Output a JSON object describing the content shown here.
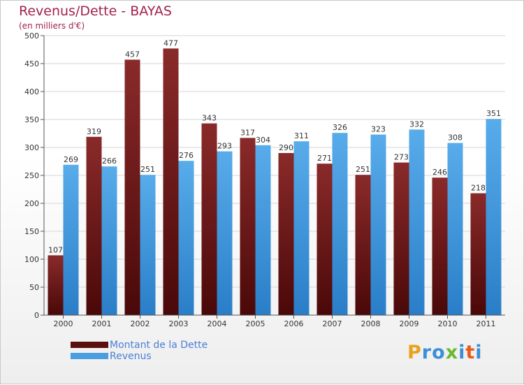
{
  "title": "Revenus/Dette - BAYAS",
  "subtitle": "(en milliers d'€)",
  "chart_data": {
    "type": "bar",
    "categories": [
      "2000",
      "2001",
      "2002",
      "2003",
      "2004",
      "2005",
      "2006",
      "2007",
      "2008",
      "2009",
      "2010",
      "2011"
    ],
    "series": [
      {
        "name": "Montant de la Dette",
        "color": "#7a1c1c",
        "values": [
          107,
          319,
          457,
          477,
          343,
          317,
          290,
          271,
          251,
          273,
          246,
          218
        ]
      },
      {
        "name": "Revenus",
        "color": "#4a9ee0",
        "values": [
          269,
          266,
          251,
          276,
          293,
          304,
          311,
          326,
          323,
          332,
          308,
          351
        ]
      }
    ],
    "ylim": [
      0,
      500
    ],
    "yticks": [
      0,
      50,
      100,
      150,
      200,
      250,
      300,
      350,
      400,
      450,
      500
    ],
    "grid": true,
    "legend_position": "bottom-left"
  },
  "legend": [
    {
      "label": "Montant de la Dette",
      "color": "#5a0f0f"
    },
    {
      "label": "Revenus",
      "color": "#4a9ee0"
    }
  ],
  "logo": {
    "letters": [
      "P",
      "r",
      "o",
      "x",
      "i",
      "t",
      "i"
    ],
    "colors": [
      "#e8a21c",
      "#3a8fd8",
      "#3a8fd8",
      "#6ab82e",
      "#3a8fd8",
      "#e85a1c",
      "#3a8fd8"
    ]
  }
}
